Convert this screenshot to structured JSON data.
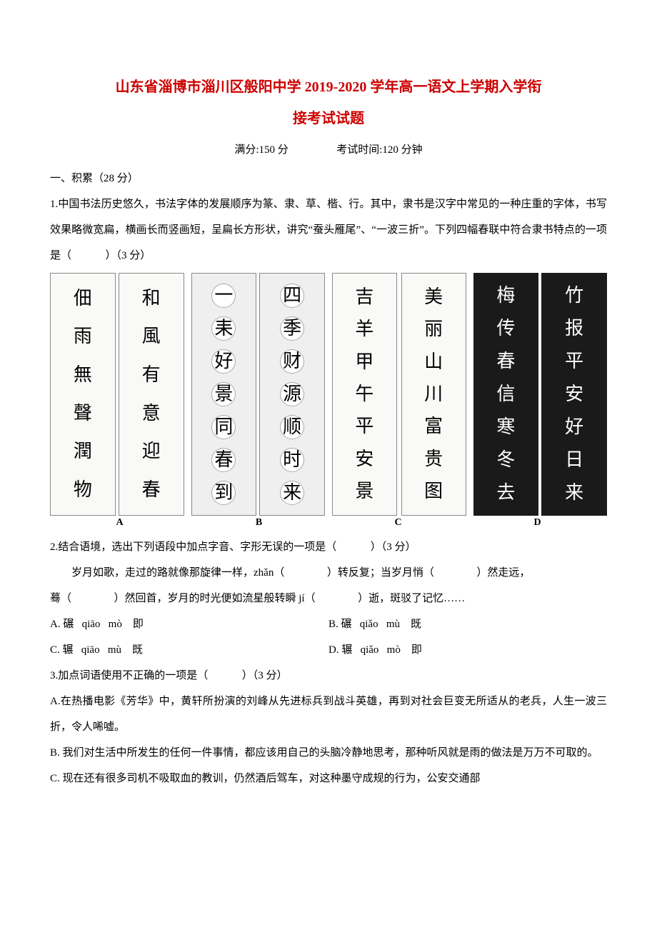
{
  "title_line1": "山东省淄博市淄川区般阳中学 2019-2020 学年高一语文上学期入学衔",
  "title_line2": "接考试试题",
  "meta": {
    "left": "满分:150 分",
    "right": "考试时间:120 分钟"
  },
  "section1": "一、积累（28 分）",
  "q1": {
    "text": "1.中国书法历史悠久，书法字体的发展顺序为篆、隶、草、楷、行。其中，隶书是汉字中常见的一种庄重的字体，书写效果略微宽扁，横画长而竖画短，呈扁长方形状，讲究“蚕头雁尾”、“一波三折”。下列四幅春联中符合隶书特点的一项是（",
    "tail": "）（3 分）"
  },
  "panels": {
    "A": {
      "left": [
        "佃",
        "雨",
        "無",
        "聲",
        "潤",
        "物"
      ],
      "right": [
        "和",
        "風",
        "有",
        "意",
        "迎",
        "春"
      ]
    },
    "B": {
      "left": [
        "一",
        "耒",
        "好",
        "景",
        "同",
        "春",
        "到"
      ],
      "right": [
        "四",
        "季",
        "财",
        "源",
        "顺",
        "时",
        "来"
      ]
    },
    "C": {
      "left": [
        "吉",
        "羊",
        "甲",
        "午",
        "平",
        "安",
        "景"
      ],
      "right": [
        "美",
        "丽",
        "山",
        "川",
        "富",
        "贵",
        "图"
      ]
    },
    "D": {
      "left": [
        "梅",
        "传",
        "春",
        "信",
        "寒",
        "冬",
        "去"
      ],
      "right": [
        "竹",
        "报",
        "平",
        "安",
        "好",
        "日",
        "来"
      ]
    }
  },
  "letters": [
    "A",
    "B",
    "C",
    "D"
  ],
  "q2": {
    "line1": "2.结合语境，选出下列语段中加点字音、字形无误的一项是（",
    "line1_tail": "）（3 分）",
    "p1a": "岁月如歌，走过的路就像那旋律一样，zhǎn（",
    "p1b": "）转反复；当岁月悄（",
    "p1c": "）然走远，",
    "p2a": "蓦（",
    "p2b": "）然回首，岁月的时光便如流星般转瞬 jí（",
    "p2c": "）逝，斑驳了记忆……",
    "opts": {
      "A": "A. 碾   qiāo   mò    即",
      "B": "B. 碾   qiǎo   mù    既",
      "C": "C. 辗   qiāo   mù    既",
      "D": "D. 辗   qiǎo   mò    即"
    }
  },
  "q3": {
    "head": "3.加点词语使用不正确的一项是（",
    "head_tail": "）（3 分）",
    "A": "A.在热播电影《芳华》中，黄轩所扮演的刘峰从先进标兵到战斗英雄，再到对社会巨变无所适从的老兵，人生一波三折，令人唏嘘。",
    "B": "B. 我们对生活中所发生的任何一件事情，都应该用自己的头脑冷静地思考，那种听风就是雨的做法是万万不可取的。",
    "C": "C. 现在还有很多司机不吸取血的教训，仍然酒后驾车，对这种墨守成规的行为，公安交通部"
  }
}
